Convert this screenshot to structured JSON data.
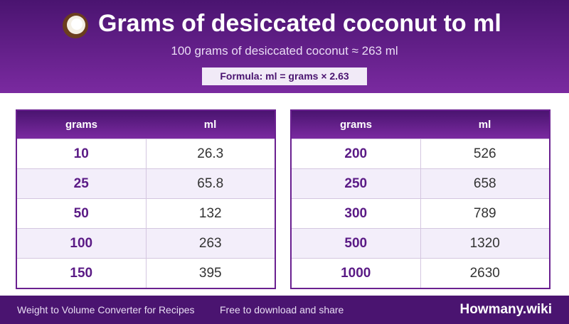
{
  "header": {
    "title": "Grams of desiccated coconut to ml",
    "subtitle": "100 grams of desiccated coconut ≈ 263 ml",
    "formula": "Formula: ml = grams × 2.63"
  },
  "tables": [
    {
      "columns": [
        "grams",
        "ml"
      ],
      "rows": [
        [
          10,
          26.3
        ],
        [
          25,
          65.8
        ],
        [
          50,
          132
        ],
        [
          100,
          263
        ],
        [
          150,
          395
        ]
      ]
    },
    {
      "columns": [
        "grams",
        "ml"
      ],
      "rows": [
        [
          200,
          526
        ],
        [
          250,
          658
        ],
        [
          300,
          789
        ],
        [
          500,
          1320
        ],
        [
          1000,
          2630
        ]
      ]
    }
  ],
  "footer": {
    "left": "Weight to Volume Converter for Recipes",
    "middle": "Free to download and share",
    "brand": "Howmany.wiki"
  }
}
